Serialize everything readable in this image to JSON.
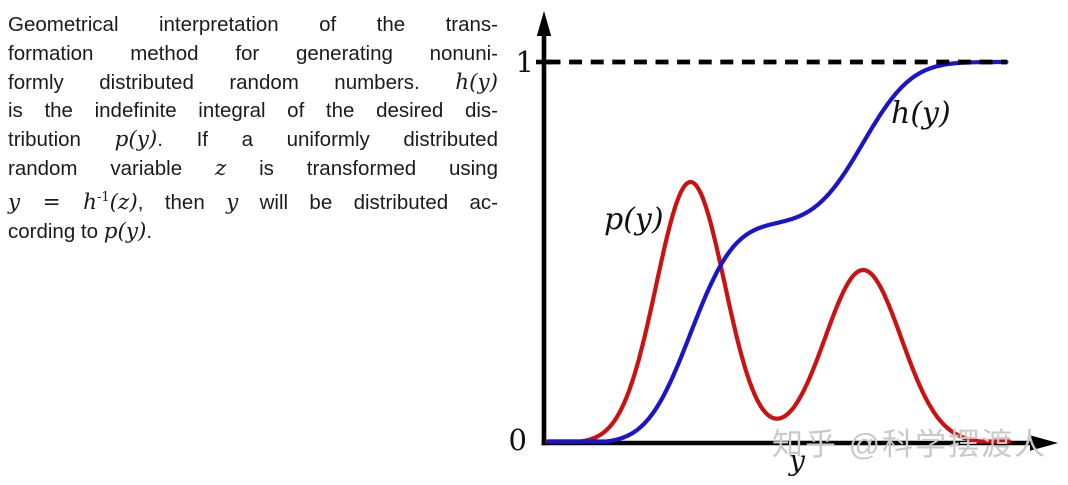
{
  "caption": {
    "lines": [
      "Geometrical interpretation of the trans-",
      "formation method for generating nonuni-",
      "formly distributed random numbers. $h(y)$",
      "is the indefinite integral of the desired dis-",
      "tribution $p(y)$.  If a uniformly distributed",
      "random variable $z$ is transformed using",
      "$y = h^{-1}(z)$, then $y$ will be distributed ac-",
      "cording to $p(y)$."
    ]
  },
  "watermark": {
    "text": "知乎 @科学摆渡人"
  },
  "chart_data": {
    "type": "line",
    "title": "",
    "xlabel": "y",
    "ylabel": "",
    "grid": false,
    "axis_color": "#000000",
    "x_axis": {
      "label": "y",
      "arrow": true,
      "numeric_ticks": []
    },
    "y_axis": {
      "arrow": true,
      "ticks": [
        {
          "value": 0,
          "label": "0"
        },
        {
          "value": 1,
          "label": "1"
        }
      ]
    },
    "asymptote": {
      "y": 1,
      "style": "dashed",
      "color": "#000000"
    },
    "x_display_range": [
      0,
      1.35
    ],
    "y_display_range": [
      0,
      1.13
    ],
    "series": [
      {
        "name": "p(y)",
        "label": "p(y)",
        "color": "#cc1111",
        "role": "density",
        "shape": "bimodal gaussian mixture",
        "components": [
          {
            "mean": 0.386,
            "sd": 0.09,
            "peak": 0.685
          },
          {
            "mean": 0.839,
            "sd": 0.1,
            "peak": 0.454
          }
        ]
      },
      {
        "name": "h(y)",
        "label": "h(y)",
        "color": "#1a15c8",
        "role": "cumulative",
        "relation": "indefinite integral of p(y), normalized",
        "start": 0,
        "asymptote": 1
      }
    ]
  }
}
